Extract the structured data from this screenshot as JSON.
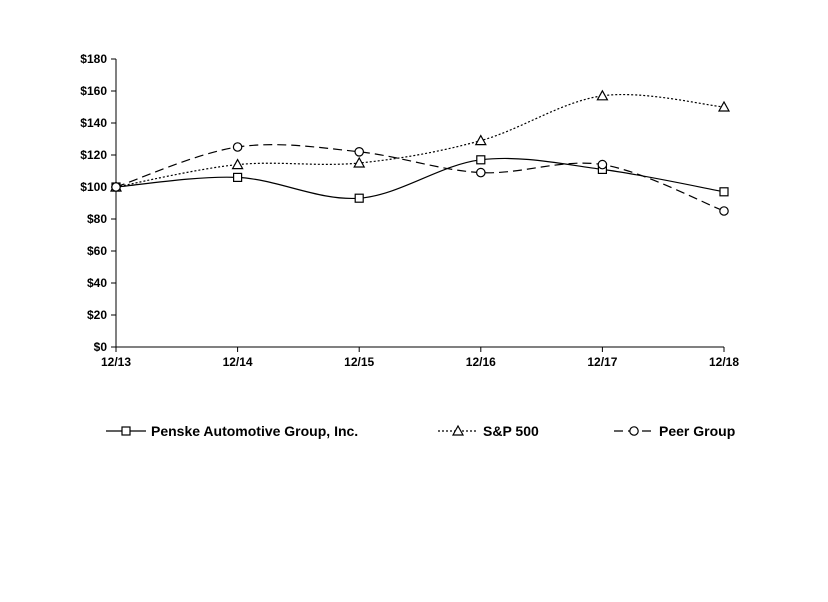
{
  "chart_data": {
    "type": "line",
    "title": "",
    "xlabel": "",
    "ylabel": "",
    "categories": [
      "12/13",
      "12/14",
      "12/15",
      "12/16",
      "12/17",
      "12/18"
    ],
    "ylim": [
      0,
      180
    ],
    "y_ticks": [
      "$0",
      "$20",
      "$40",
      "$60",
      "$80",
      "$100",
      "$120",
      "$140",
      "$160",
      "$180"
    ],
    "y_tick_values": [
      0,
      20,
      40,
      60,
      80,
      100,
      120,
      140,
      160,
      180
    ],
    "grid": false,
    "legend_position": "bottom",
    "series": [
      {
        "name": "Penske Automotive Group, Inc.",
        "marker": "square",
        "dash": "solid",
        "values": [
          100,
          106,
          93,
          117,
          111,
          97
        ]
      },
      {
        "name": "S&P 500",
        "marker": "triangle",
        "dash": "dotted",
        "values": [
          100,
          114,
          115,
          129,
          157,
          150
        ]
      },
      {
        "name": "Peer Group",
        "marker": "circle",
        "dash": "dashed",
        "values": [
          100,
          125,
          122,
          109,
          114,
          85
        ]
      }
    ]
  },
  "colors": {
    "line": "#000000",
    "background": "#ffffff"
  }
}
